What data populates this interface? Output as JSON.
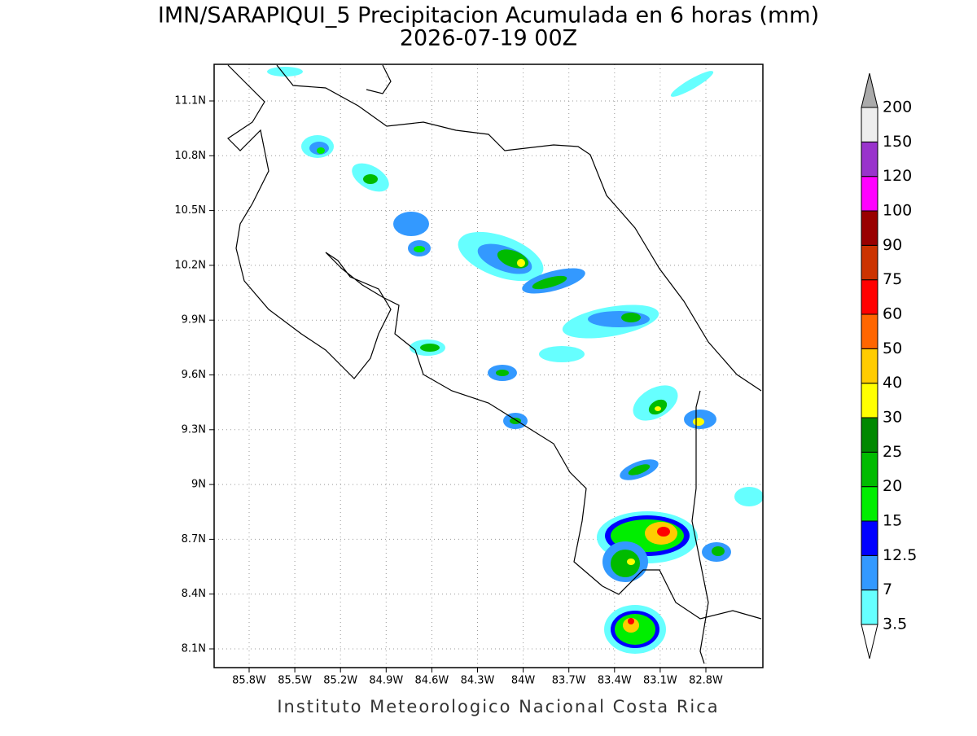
{
  "title": "IMN/SARAPIQUI_5 Precipitacion Acumulada en 6 horas (mm)",
  "subtitle": "2026-07-19 00Z",
  "map": {
    "lon_labels": [
      "85.8W",
      "85.5W",
      "85.2W",
      "84.9W",
      "84.6W",
      "84.3W",
      "84W",
      "83.7W",
      "83.4W",
      "83.1W",
      "82.8W"
    ],
    "lat_labels": [
      "11.1N",
      "10.8N",
      "10.5N",
      "10.2N",
      "9.9N",
      "9.6N",
      "9.3N",
      "9N",
      "8.7N",
      "8.4N",
      "8.1N"
    ]
  },
  "colorbar": {
    "levels": [
      "3.5",
      "7",
      "12.5",
      "15",
      "20",
      "25",
      "30",
      "40",
      "50",
      "60",
      "75",
      "90",
      "100",
      "120",
      "150",
      "200"
    ],
    "colors": [
      "#66ffff",
      "#3399ff",
      "#0000ff",
      "#00ee00",
      "#00bb00",
      "#008800",
      "#ffff00",
      "#ffcc00",
      "#ff6600",
      "#ff0000",
      "#cc3300",
      "#990000",
      "#ff00ff",
      "#9933cc",
      "#eeeeee"
    ],
    "under_color": "#ffffff",
    "over_color": "#aaaaaa"
  },
  "footer": "Instituto Meteorologico Nacional Costa Rica"
}
